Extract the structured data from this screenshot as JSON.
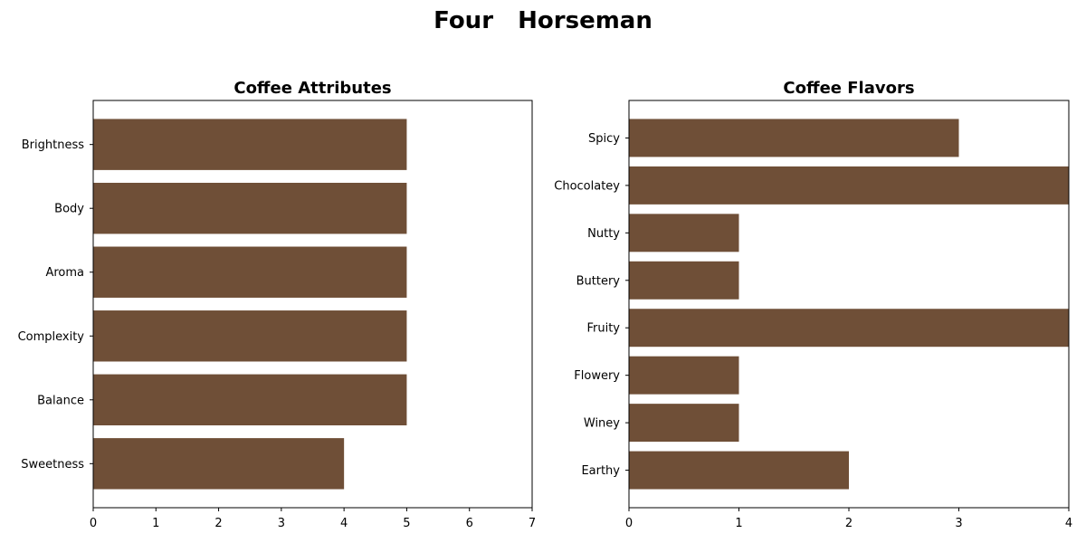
{
  "suptitle": "Four   Horseman",
  "bar_color": "#6f4f37",
  "chart_data": [
    {
      "type": "bar",
      "orientation": "horizontal",
      "title": "Coffee Attributes",
      "categories": [
        "Brightness",
        "Body",
        "Aroma",
        "Complexity",
        "Balance",
        "Sweetness"
      ],
      "values": [
        5,
        5,
        5,
        5,
        5,
        4
      ],
      "xlim": [
        0,
        7
      ],
      "xticks": [
        "0",
        "1",
        "2",
        "3",
        "4",
        "5",
        "6",
        "7"
      ],
      "xlabel": "",
      "ylabel": "",
      "grid": false,
      "legend": "none"
    },
    {
      "type": "bar",
      "orientation": "horizontal",
      "title": "Coffee Flavors",
      "categories": [
        "Spicy",
        "Chocolatey",
        "Nutty",
        "Buttery",
        "Fruity",
        "Flowery",
        "Winey",
        "Earthy"
      ],
      "values": [
        3,
        4,
        1,
        1,
        4,
        1,
        1,
        2
      ],
      "xlim": [
        0,
        4
      ],
      "xticks": [
        "0",
        "1",
        "2",
        "3",
        "4"
      ],
      "xlabel": "",
      "ylabel": "",
      "grid": false,
      "legend": "none"
    }
  ]
}
